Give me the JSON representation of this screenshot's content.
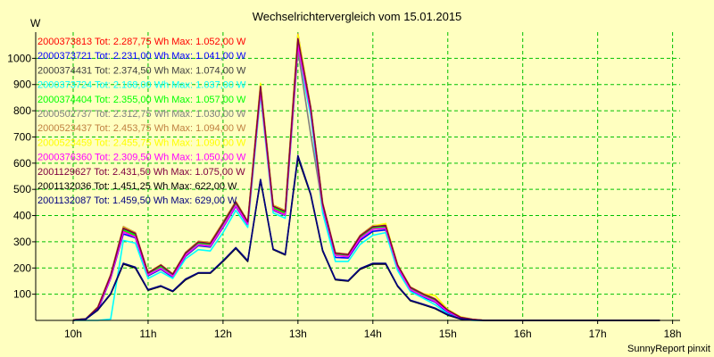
{
  "chart_data": {
    "type": "line",
    "title": "Wechselrichtervergleich vom 15.01.2015",
    "ylabel": "W",
    "xlabel": "",
    "footer": "SunnyReport pinxit",
    "xlim": [
      9.5,
      18.1
    ],
    "ylim": [
      0,
      1100
    ],
    "x_ticks": [
      10,
      11,
      12,
      13,
      14,
      15,
      16,
      17,
      18
    ],
    "x_tick_labels": [
      "10h",
      "11h",
      "12h",
      "13h",
      "14h",
      "15h",
      "16h",
      "17h",
      "18h"
    ],
    "y_ticks": [
      100,
      200,
      300,
      400,
      500,
      600,
      700,
      800,
      900,
      1000
    ],
    "y_tick_labels": [
      "100",
      "200",
      "300",
      "400",
      "500",
      "600",
      "700",
      "800",
      "900",
      "1000"
    ],
    "grid": true,
    "legend_position": "top-left",
    "x": [
      10.0,
      10.17,
      10.33,
      10.5,
      10.67,
      10.83,
      11.0,
      11.17,
      11.33,
      11.5,
      11.67,
      11.83,
      12.0,
      12.17,
      12.33,
      12.5,
      12.67,
      12.83,
      13.0,
      13.17,
      13.33,
      13.5,
      13.67,
      13.83,
      14.0,
      14.17,
      14.33,
      14.5,
      14.67,
      14.83,
      15.0,
      15.17,
      15.33,
      15.5,
      15.67,
      15.83,
      16.0,
      16.17,
      16.33,
      16.5,
      16.67,
      16.83,
      17.0,
      17.17,
      17.33,
      17.5,
      17.67,
      17.83
    ],
    "series": [
      {
        "name": "2000373813 Tot: 2.287,75 Wh Max: 1.052,00 W",
        "color": "#ff0000",
        "values": [
          2,
          5,
          45,
          165,
          340,
          320,
          175,
          200,
          170,
          250,
          290,
          285,
          360,
          440,
          370,
          880,
          425,
          405,
          1050,
          800,
          440,
          250,
          245,
          315,
          350,
          355,
          205,
          120,
          95,
          75,
          35,
          10,
          3,
          0,
          0,
          0,
          0,
          0,
          0,
          0,
          0,
          0,
          0,
          0,
          0,
          0,
          0,
          0
        ]
      },
      {
        "name": "2000373721 Tot: 2.231,00 Wh Max: 1.041,00 W",
        "color": "#0000ff",
        "values": [
          2,
          5,
          40,
          160,
          330,
          315,
          170,
          195,
          165,
          245,
          285,
          280,
          355,
          435,
          365,
          870,
          420,
          400,
          1040,
          790,
          430,
          240,
          238,
          305,
          340,
          345,
          200,
          115,
          90,
          70,
          30,
          8,
          2,
          0,
          0,
          0,
          0,
          0,
          0,
          0,
          0,
          0,
          0,
          0,
          0,
          0,
          0,
          0
        ]
      },
      {
        "name": "2000374431 Tot: 2.374,50 Wh Max: 1.074,00 W",
        "color": "#404040",
        "values": [
          2,
          6,
          50,
          170,
          350,
          330,
          180,
          210,
          175,
          255,
          300,
          295,
          370,
          450,
          375,
          895,
          435,
          415,
          1070,
          810,
          445,
          255,
          250,
          320,
          360,
          360,
          210,
          125,
          100,
          80,
          38,
          12,
          3,
          0,
          0,
          0,
          0,
          0,
          0,
          0,
          0,
          0,
          0,
          0,
          0,
          0,
          0,
          0
        ]
      },
      {
        "name": "2000373724 Tot: 2.168,00 Wh Max: 1.037,00 W",
        "color": "#00ffff",
        "values": [
          0,
          0,
          0,
          5,
          305,
          295,
          160,
          185,
          160,
          235,
          270,
          265,
          335,
          420,
          355,
          860,
          410,
          390,
          1030,
          780,
          410,
          225,
          225,
          290,
          325,
          335,
          190,
          110,
          85,
          60,
          25,
          5,
          0,
          0,
          0,
          0,
          0,
          0,
          0,
          0,
          0,
          0,
          0,
          0,
          0,
          0,
          0,
          0
        ]
      },
      {
        "name": "2000374404 Tot: 2.355,00 Wh Max: 1.057,00 W",
        "color": "#00ff00",
        "values": [
          2,
          6,
          48,
          165,
          345,
          325,
          178,
          205,
          172,
          252,
          295,
          290,
          365,
          445,
          372,
          885,
          430,
          410,
          1055,
          805,
          440,
          252,
          248,
          318,
          355,
          355,
          207,
          122,
          97,
          77,
          36,
          11,
          3,
          0,
          0,
          0,
          0,
          0,
          0,
          0,
          0,
          0,
          0,
          0,
          0,
          0,
          0,
          0
        ]
      },
      {
        "name": "2000502737 Tot: 2.312,75 Wh Max: 1.030,00 W",
        "color": "#808080",
        "values": [
          2,
          5,
          44,
          162,
          338,
          318,
          173,
          198,
          168,
          248,
          288,
          283,
          358,
          438,
          368,
          875,
          422,
          402,
          1030,
          710,
          435,
          248,
          243,
          312,
          348,
          350,
          203,
          118,
          93,
          73,
          34,
          10,
          3,
          0,
          0,
          0,
          0,
          0,
          0,
          0,
          0,
          0,
          0,
          0,
          0,
          0,
          0,
          0
        ]
      },
      {
        "name": "2000523437 Tot: 2.453,75 Wh Max: 1.094,00 W",
        "color": "#c08040",
        "values": [
          2,
          6,
          52,
          175,
          358,
          335,
          183,
          213,
          178,
          260,
          302,
          298,
          375,
          455,
          378,
          900,
          440,
          420,
          1094,
          815,
          450,
          258,
          253,
          325,
          362,
          365,
          213,
          128,
          103,
          83,
          40,
          13,
          4,
          0,
          0,
          0,
          0,
          0,
          0,
          0,
          0,
          0,
          0,
          0,
          0,
          0,
          0,
          0
        ]
      },
      {
        "name": "2000523459 Tot: 2.455,75 Wh Max: 1.090,00 W",
        "color": "#ffff00",
        "values": [
          2,
          6,
          51,
          172,
          355,
          333,
          182,
          212,
          177,
          258,
          300,
          296,
          373,
          453,
          377,
          905,
          438,
          418,
          1090,
          813,
          448,
          256,
          251,
          323,
          360,
          370,
          212,
          127,
          102,
          95,
          42,
          14,
          4,
          0,
          0,
          0,
          0,
          0,
          0,
          0,
          0,
          0,
          0,
          0,
          0,
          0,
          0,
          0
        ]
      },
      {
        "name": "2000376360 Tot: 2.309,50 Wh Max: 1.050,00 W",
        "color": "#ff00ff",
        "values": [
          2,
          5,
          44,
          163,
          338,
          318,
          174,
          199,
          169,
          249,
          289,
          284,
          358,
          438,
          368,
          877,
          423,
          403,
          1050,
          798,
          437,
          248,
          243,
          312,
          348,
          352,
          203,
          118,
          93,
          73,
          34,
          10,
          3,
          0,
          0,
          0,
          0,
          0,
          0,
          0,
          0,
          0,
          0,
          0,
          0,
          0,
          0,
          0
        ]
      },
      {
        "name": "2001129627 Tot: 2.431,50 Wh Max: 1.075,00 W",
        "color": "#800040",
        "values": [
          2,
          6,
          50,
          172,
          352,
          332,
          181,
          211,
          176,
          257,
          299,
          294,
          371,
          451,
          376,
          893,
          436,
          416,
          1075,
          812,
          446,
          256,
          251,
          322,
          358,
          362,
          211,
          126,
          101,
          81,
          39,
          12,
          4,
          0,
          0,
          0,
          0,
          0,
          0,
          0,
          0,
          0,
          0,
          0,
          0,
          0,
          0,
          0
        ]
      },
      {
        "name": "2001132036 Tot: 1.451,25 Wh Max: 622,00 W",
        "color": "#000000",
        "values": [
          0,
          5,
          40,
          100,
          215,
          200,
          115,
          130,
          110,
          155,
          180,
          180,
          225,
          275,
          225,
          535,
          270,
          250,
          622,
          480,
          265,
          155,
          150,
          195,
          215,
          215,
          130,
          75,
          60,
          45,
          20,
          5,
          1,
          0,
          0,
          0,
          0,
          0,
          0,
          0,
          0,
          0,
          0,
          0,
          0,
          0,
          0,
          0
        ]
      },
      {
        "name": "2001132087 Tot: 1.459,50 Wh Max: 629,00 W",
        "color": "#000080",
        "values": [
          0,
          5,
          42,
          102,
          218,
          203,
          117,
          132,
          112,
          158,
          182,
          182,
          228,
          278,
          228,
          538,
          272,
          252,
          629,
          483,
          268,
          157,
          152,
          198,
          218,
          218,
          132,
          77,
          62,
          47,
          22,
          6,
          1,
          0,
          0,
          0,
          0,
          0,
          0,
          0,
          0,
          0,
          0,
          0,
          0,
          0,
          0,
          0
        ]
      }
    ]
  }
}
